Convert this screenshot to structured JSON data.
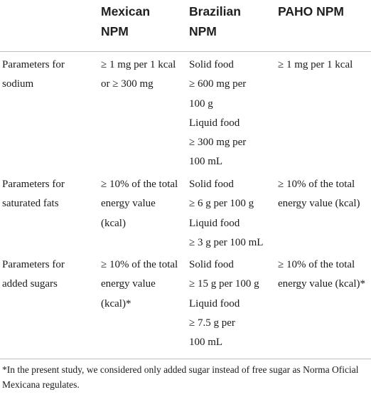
{
  "headers": [
    [
      " "
    ],
    [
      "Mexican",
      "NPM"
    ],
    [
      "Brazilian",
      "NPM"
    ],
    [
      "PAHO NPM"
    ]
  ],
  "rows": [
    {
      "cells": [
        [
          "Parameters for",
          "sodium"
        ],
        [
          "≥ 1 mg per 1 kcal",
          "or ≥ 300 mg"
        ],
        [
          "Solid food",
          "≥ 600 mg per",
          "100 g",
          "Liquid food",
          "≥ 300 mg per",
          "100 mL"
        ],
        [
          "≥ 1 mg per 1 kcal"
        ]
      ]
    },
    {
      "cells": [
        [
          "Parameters for",
          "saturated fats"
        ],
        [
          "≥ 10% of the total",
          "energy value",
          "(kcal)"
        ],
        [
          "Solid food",
          "≥ 6 g per 100 g",
          "Liquid food",
          "≥ 3 g per 100 mL"
        ],
        [
          "≥ 10% of the total",
          "energy value (kcal)"
        ]
      ]
    },
    {
      "cells": [
        [
          "Parameters for",
          "added sugars"
        ],
        [
          "≥ 10% of the total",
          "energy value",
          "(kcal)*"
        ],
        [
          "Solid food",
          "≥ 15 g per 100 g",
          "Liquid food",
          "≥ 7.5 g per",
          "100 mL"
        ],
        [
          "≥ 10% of the total",
          "energy value (kcal)*"
        ]
      ]
    }
  ],
  "footnote": "*In the present study, we considered only added sugar instead of free sugar as Norma Oficial Mexicana regulates."
}
